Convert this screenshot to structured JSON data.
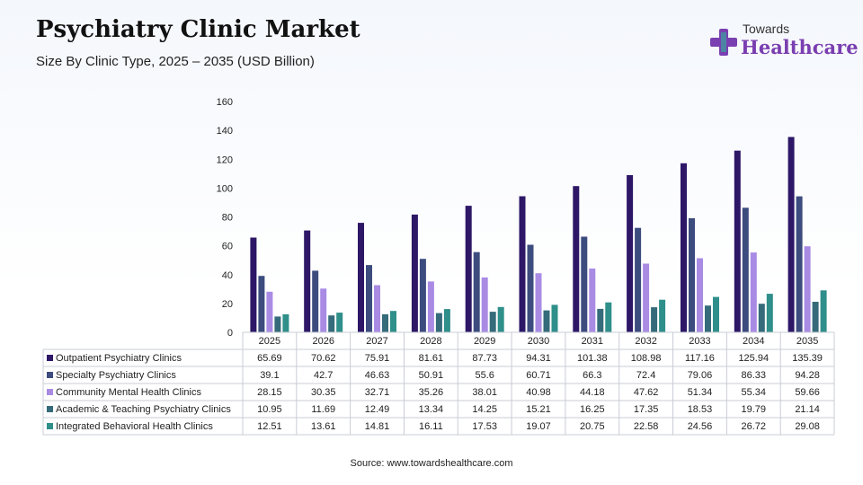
{
  "header": {
    "title": "Psychiatry Clinic Market",
    "subtitle": "Size By Clinic Type, 2025 – 2035 (USD Billion)"
  },
  "logo": {
    "top": "Towards",
    "bottom": "Healthcare",
    "color": "#7a3fb0"
  },
  "footer": {
    "source": "Source: www.towardshealthcare.com"
  },
  "chart_data": {
    "type": "bar",
    "title": "Psychiatry Clinic Market",
    "subtitle": "Size By Clinic Type, 2025 – 2035 (USD Billion)",
    "categories": [
      "2025",
      "2026",
      "2027",
      "2028",
      "2029",
      "2030",
      "2031",
      "2032",
      "2033",
      "2034",
      "2035"
    ],
    "ylim": [
      0,
      160
    ],
    "yticks": [
      0,
      20,
      40,
      60,
      80,
      100,
      120,
      140,
      160
    ],
    "grid": false,
    "legend": "data table below chart",
    "series": [
      {
        "name": "Outpatient Psychiatry Clinics",
        "color": "#2d1766",
        "values": [
          65.69,
          70.62,
          75.91,
          81.61,
          87.73,
          94.31,
          101.38,
          108.98,
          117.16,
          125.94,
          135.39
        ]
      },
      {
        "name": "Specialty Psychiatry Clinics",
        "color": "#3d4c7e",
        "values": [
          39.1,
          42.7,
          46.63,
          50.91,
          55.6,
          60.71,
          66.3,
          72.4,
          79.06,
          86.33,
          94.28
        ]
      },
      {
        "name": "Community Mental Health Clinics",
        "color": "#a98be4",
        "values": [
          28.15,
          30.35,
          32.71,
          35.26,
          38.01,
          40.98,
          44.18,
          47.62,
          51.34,
          55.34,
          59.66
        ]
      },
      {
        "name": "Academic & Teaching Psychiatry Clinics",
        "color": "#356b7a",
        "values": [
          10.95,
          11.69,
          12.49,
          13.34,
          14.25,
          15.21,
          16.25,
          17.35,
          18.53,
          19.79,
          21.14
        ]
      },
      {
        "name": "Integrated Behavioral Health Clinics",
        "color": "#2f8f8a",
        "values": [
          12.51,
          13.61,
          14.81,
          16.11,
          17.53,
          19.07,
          20.75,
          22.58,
          24.56,
          26.72,
          29.08
        ]
      }
    ]
  }
}
